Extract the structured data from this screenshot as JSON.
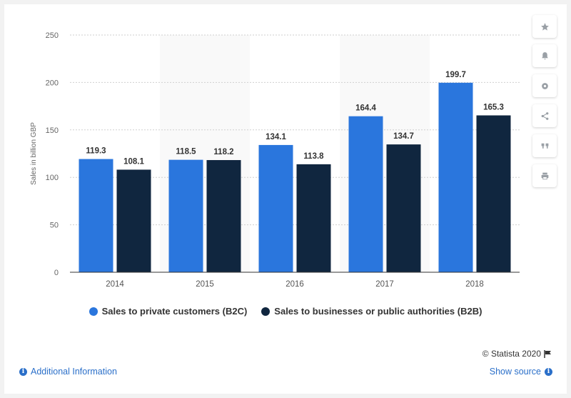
{
  "chart_data": {
    "type": "bar",
    "categories": [
      "2014",
      "2015",
      "2016",
      "2017",
      "2018"
    ],
    "series": [
      {
        "name": "Sales to private customers (B2C)",
        "values": [
          119.3,
          118.5,
          134.1,
          164.4,
          199.7
        ],
        "color": "#2a76dd"
      },
      {
        "name": "Sales to businesses or public authorities (B2B)",
        "values": [
          108.1,
          118.2,
          113.8,
          134.7,
          165.3
        ],
        "color": "#10263f"
      }
    ],
    "value_labels": {
      "s0": [
        "119.3",
        "118.5",
        "134.1",
        "164.4",
        "199.7"
      ],
      "s1": [
        "108.1",
        "118.2",
        "113.8",
        "134.7",
        "165.3"
      ]
    },
    "ylabel": "Sales in billion GBP",
    "ylim": [
      0,
      250
    ],
    "yticks": [
      0,
      50,
      100,
      150,
      200,
      250
    ],
    "ytick_labels": [
      "0",
      "50",
      "100",
      "150",
      "200",
      "250"
    ],
    "grid": true,
    "legend_position": "bottom"
  },
  "sidebar": {
    "icons": [
      "star-icon",
      "bell-icon",
      "gear-icon",
      "share-icon",
      "quote-icon",
      "print-icon"
    ]
  },
  "footer": {
    "credit": "© Statista 2020",
    "additional_info": "Additional Information",
    "show_source": "Show source"
  }
}
